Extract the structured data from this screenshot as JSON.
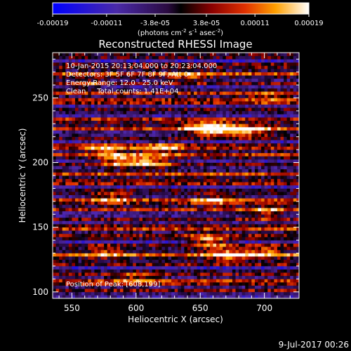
{
  "chart_data": {
    "type": "heatmap",
    "title": "Reconstructed RHESSI Image",
    "xlabel": "Heliocentric X (arcsec)",
    "ylabel": "Heliocentric Y (arcsec)",
    "xlim": [
      535,
      727
    ],
    "ylim": [
      95,
      285
    ],
    "x_ticks": [
      550,
      600,
      650,
      700
    ],
    "y_ticks": [
      100,
      150,
      200,
      250
    ],
    "colorbar": {
      "label_main": "(photons cm",
      "label_sup1": "-2",
      "label_mid": " s",
      "label_sup2": "-1",
      "label_end": " asec",
      "label_sup3": "-2",
      "label_close": ")",
      "ticks": [
        "-0.00019",
        "-0.00011",
        "-3.8e-05",
        "3.8e-05",
        "0.00011",
        "0.00019"
      ],
      "range": [
        -0.00019,
        0.00019
      ]
    },
    "annotations": [
      "10-Jan-2015 20:13:04.000 to 20:23:04.000",
      "Detectors: 3F 5F 6F 7F 8F 9F, Att 0",
      "Energy Range: 12.0 - 25.0 keV",
      "Clean     Total counts: 1.41E+04"
    ],
    "peak_label": "Position of Peak: [608,199]",
    "peak": [
      608,
      199
    ],
    "hotspots": [
      {
        "x": 663,
        "y": 224,
        "amp": 0.95
      },
      {
        "x": 652,
        "y": 226,
        "amp": 0.7
      },
      {
        "x": 690,
        "y": 223,
        "amp": 0.75
      },
      {
        "x": 610,
        "y": 199,
        "amp": 0.9
      },
      {
        "x": 585,
        "y": 200,
        "amp": 0.75
      },
      {
        "x": 575,
        "y": 210,
        "amp": 0.6
      },
      {
        "x": 620,
        "y": 210,
        "amp": 0.6
      },
      {
        "x": 580,
        "y": 172,
        "amp": 0.55
      },
      {
        "x": 660,
        "y": 170,
        "amp": 0.55
      },
      {
        "x": 700,
        "y": 160,
        "amp": 0.6
      },
      {
        "x": 655,
        "y": 138,
        "amp": 0.8
      },
      {
        "x": 670,
        "y": 128,
        "amp": 0.75
      },
      {
        "x": 700,
        "y": 130,
        "amp": 0.55
      },
      {
        "x": 575,
        "y": 130,
        "amp": 0.5
      },
      {
        "x": 560,
        "y": 260,
        "amp": 0.45
      },
      {
        "x": 640,
        "y": 265,
        "amp": 0.4
      },
      {
        "x": 700,
        "y": 250,
        "amp": 0.4
      },
      {
        "x": 600,
        "y": 110,
        "amp": 0.5
      }
    ],
    "grid": false
  },
  "footer": {
    "date": "9-Jul-2017 00:26"
  }
}
